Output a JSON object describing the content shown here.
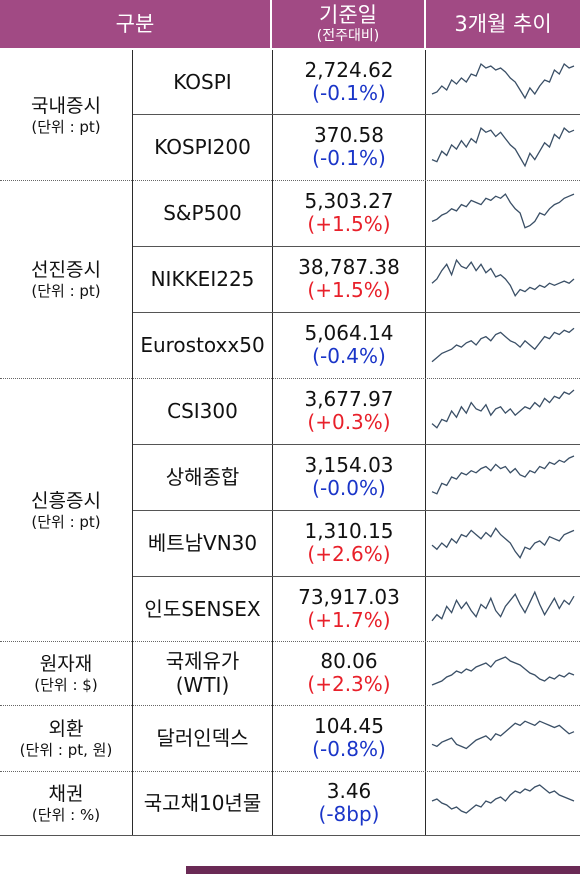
{
  "header": {
    "category": "구분",
    "base_date": "기준일",
    "base_date_sub": "(전주대비)",
    "trend": "3개월 추이"
  },
  "colors": {
    "header_bg": "#a14a84",
    "up": "#e8202a",
    "down": "#1a35c8",
    "spark": "#3a4f66"
  },
  "groups": [
    {
      "name": "국내증시",
      "unit": "(단위 : pt)"
    },
    {
      "name": "선진증시",
      "unit": "(단위 : pt)"
    },
    {
      "name": "신흥증시",
      "unit": "(단위 : pt)"
    },
    {
      "name": "원자재",
      "unit": "(단위 : $)"
    },
    {
      "name": "외환",
      "unit": "(단위 : pt, 원)"
    },
    {
      "name": "채권",
      "unit": "(단위 : %)"
    }
  ],
  "rows": [
    {
      "name": "KOSPI",
      "value": "2,724.62",
      "change": "(-0.1%)",
      "dir": "down"
    },
    {
      "name": "KOSPI200",
      "value": "370.58",
      "change": "(-0.1%)",
      "dir": "down"
    },
    {
      "name": "S&P500",
      "value": "5,303.27",
      "change": "(+1.5%)",
      "dir": "up"
    },
    {
      "name": "NIKKEI225",
      "value": "38,787.38",
      "change": "(+1.5%)",
      "dir": "up"
    },
    {
      "name": "Eurostoxx50",
      "value": "5,064.14",
      "change": "(-0.4%)",
      "dir": "down"
    },
    {
      "name": "CSI300",
      "value": "3,677.97",
      "change": "(+0.3%)",
      "dir": "up"
    },
    {
      "name": "상해종합",
      "value": "3,154.03",
      "change": "(-0.0%)",
      "dir": "down"
    },
    {
      "name": "베트남VN30",
      "value": "1,310.15",
      "change": "(+2.6%)",
      "dir": "up"
    },
    {
      "name": "인도SENSEX",
      "value": "73,917.03",
      "change": "(+1.7%)",
      "dir": "up"
    },
    {
      "name": "국제유가",
      "name2": "(WTI)",
      "value": "80.06",
      "change": "(+2.3%)",
      "dir": "up"
    },
    {
      "name": "달러인덱스",
      "value": "104.45",
      "change": "(-0.8%)",
      "dir": "down"
    },
    {
      "name": "국고채10년물",
      "value": "3.46",
      "change": "(-8bp)",
      "dir": "down"
    }
  ],
  "sparklines": [
    [
      0.2,
      0.25,
      0.4,
      0.3,
      0.55,
      0.45,
      0.6,
      0.5,
      0.7,
      0.65,
      0.95,
      0.85,
      0.9,
      0.8,
      0.85,
      0.75,
      0.6,
      0.5,
      0.3,
      0.1,
      0.35,
      0.2,
      0.4,
      0.55,
      0.5,
      0.8,
      0.7,
      0.95,
      0.85,
      0.9
    ],
    [
      0.2,
      0.15,
      0.4,
      0.3,
      0.55,
      0.45,
      0.65,
      0.5,
      0.7,
      0.6,
      0.95,
      0.85,
      0.9,
      0.75,
      0.85,
      0.7,
      0.55,
      0.45,
      0.25,
      0.05,
      0.35,
      0.2,
      0.4,
      0.6,
      0.5,
      0.8,
      0.7,
      0.95,
      0.85,
      0.9
    ],
    [
      0.3,
      0.35,
      0.45,
      0.5,
      0.6,
      0.55,
      0.7,
      0.65,
      0.8,
      0.75,
      0.7,
      0.85,
      0.8,
      0.9,
      0.85,
      0.95,
      0.75,
      0.6,
      0.5,
      0.15,
      0.2,
      0.3,
      0.5,
      0.45,
      0.6,
      0.7,
      0.75,
      0.85,
      0.9,
      0.95
    ],
    [
      0.4,
      0.5,
      0.7,
      0.85,
      0.6,
      0.95,
      0.8,
      0.75,
      0.9,
      0.7,
      0.85,
      0.65,
      0.75,
      0.55,
      0.6,
      0.5,
      0.35,
      0.1,
      0.25,
      0.2,
      0.3,
      0.25,
      0.35,
      0.3,
      0.4,
      0.35,
      0.4,
      0.45,
      0.4,
      0.5
    ],
    [
      0.1,
      0.2,
      0.3,
      0.35,
      0.4,
      0.5,
      0.45,
      0.55,
      0.6,
      0.5,
      0.65,
      0.7,
      0.6,
      0.75,
      0.8,
      0.7,
      0.6,
      0.55,
      0.45,
      0.6,
      0.5,
      0.4,
      0.55,
      0.7,
      0.65,
      0.8,
      0.75,
      0.85,
      0.8,
      0.9
    ],
    [
      0.2,
      0.1,
      0.3,
      0.25,
      0.5,
      0.35,
      0.6,
      0.45,
      0.7,
      0.55,
      0.5,
      0.65,
      0.4,
      0.55,
      0.6,
      0.45,
      0.55,
      0.4,
      0.5,
      0.6,
      0.55,
      0.7,
      0.6,
      0.8,
      0.7,
      0.85,
      0.8,
      0.95,
      0.9,
      1.0
    ],
    [
      0.15,
      0.1,
      0.35,
      0.3,
      0.5,
      0.45,
      0.6,
      0.55,
      0.65,
      0.6,
      0.7,
      0.75,
      0.65,
      0.8,
      0.7,
      0.75,
      0.6,
      0.7,
      0.55,
      0.5,
      0.65,
      0.6,
      0.75,
      0.7,
      0.85,
      0.8,
      0.9,
      0.85,
      0.95,
      1.0
    ],
    [
      0.45,
      0.35,
      0.5,
      0.4,
      0.6,
      0.5,
      0.7,
      0.65,
      0.8,
      0.7,
      0.6,
      0.75,
      0.65,
      0.85,
      0.7,
      0.6,
      0.5,
      0.3,
      0.15,
      0.4,
      0.35,
      0.5,
      0.55,
      0.45,
      0.65,
      0.6,
      0.55,
      0.7,
      0.75,
      0.8
    ],
    [
      0.2,
      0.35,
      0.25,
      0.55,
      0.4,
      0.7,
      0.5,
      0.65,
      0.45,
      0.3,
      0.6,
      0.5,
      0.75,
      0.45,
      0.3,
      0.55,
      0.7,
      0.85,
      0.6,
      0.4,
      0.65,
      0.9,
      0.6,
      0.35,
      0.55,
      0.75,
      0.5,
      0.7,
      0.6,
      0.8
    ],
    [
      0.2,
      0.25,
      0.3,
      0.4,
      0.45,
      0.55,
      0.5,
      0.6,
      0.55,
      0.65,
      0.7,
      0.75,
      0.65,
      0.8,
      0.85,
      0.9,
      0.8,
      0.75,
      0.7,
      0.6,
      0.5,
      0.45,
      0.35,
      0.3,
      0.4,
      0.35,
      0.45,
      0.4,
      0.5,
      0.45
    ],
    [
      0.35,
      0.3,
      0.4,
      0.45,
      0.5,
      0.35,
      0.3,
      0.25,
      0.35,
      0.45,
      0.5,
      0.55,
      0.45,
      0.6,
      0.55,
      0.65,
      0.75,
      0.85,
      0.8,
      0.9,
      0.85,
      0.8,
      0.9,
      0.85,
      0.8,
      0.75,
      0.8,
      0.7,
      0.6,
      0.65
    ],
    [
      0.55,
      0.6,
      0.5,
      0.45,
      0.35,
      0.4,
      0.3,
      0.25,
      0.35,
      0.45,
      0.4,
      0.55,
      0.5,
      0.6,
      0.65,
      0.55,
      0.7,
      0.8,
      0.75,
      0.85,
      0.8,
      0.9,
      0.95,
      0.85,
      0.75,
      0.8,
      0.7,
      0.65,
      0.6,
      0.55
    ]
  ]
}
